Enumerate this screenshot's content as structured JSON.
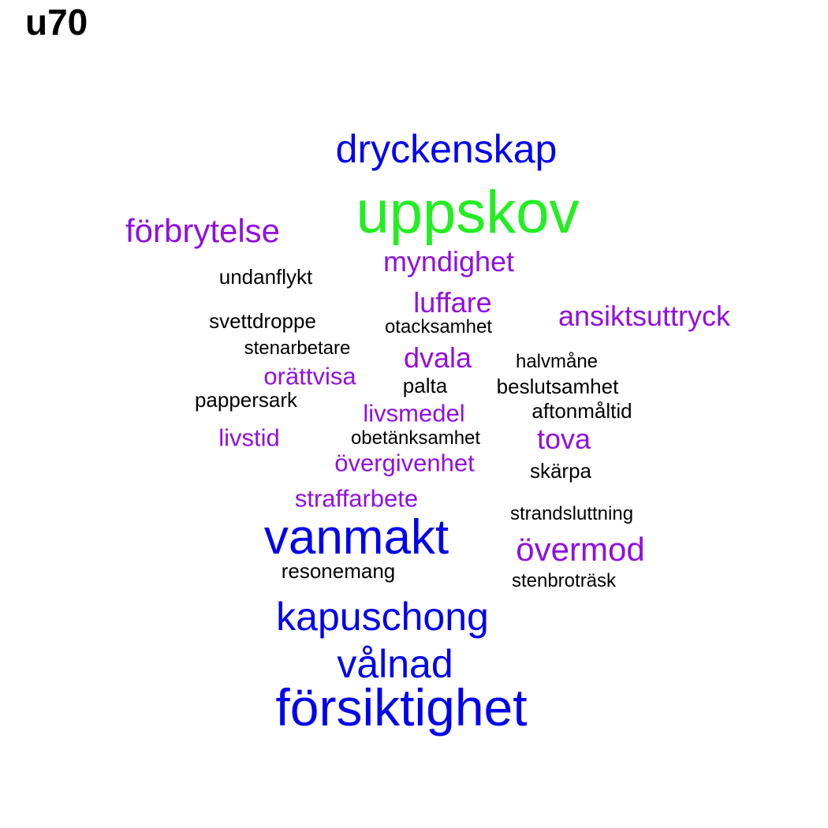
{
  "title": "u70",
  "colors": {
    "green": "#22ee22",
    "blue": "#0000ee",
    "purple": "#9010e0",
    "black": "#000000"
  },
  "words": [
    {
      "id": "uppskov",
      "text": "uppskov",
      "color": "green"
    },
    {
      "id": "forsiktighet",
      "text": "försiktighet",
      "color": "blue"
    },
    {
      "id": "vanmakt",
      "text": "vanmakt",
      "color": "blue"
    },
    {
      "id": "dryckenskap",
      "text": "dryckenskap",
      "color": "blue"
    },
    {
      "id": "kapuschong",
      "text": "kapuschong",
      "color": "blue"
    },
    {
      "id": "valnad",
      "text": "vålnad",
      "color": "blue"
    },
    {
      "id": "forbrytelse",
      "text": "förbrytelse",
      "color": "purple"
    },
    {
      "id": "overmod",
      "text": "övermod",
      "color": "purple"
    },
    {
      "id": "myndighet",
      "text": "myndighet",
      "color": "purple"
    },
    {
      "id": "luffare",
      "text": "luffare",
      "color": "purple"
    },
    {
      "id": "ansiktsuttryck",
      "text": "ansiktsuttryck",
      "color": "purple"
    },
    {
      "id": "dvala",
      "text": "dvala",
      "color": "purple"
    },
    {
      "id": "orattvisa",
      "text": "orättvisa",
      "color": "purple"
    },
    {
      "id": "livsmedel",
      "text": "livsmedel",
      "color": "purple"
    },
    {
      "id": "livstid",
      "text": "livstid",
      "color": "purple"
    },
    {
      "id": "tova",
      "text": "tova",
      "color": "purple"
    },
    {
      "id": "overgivenhet",
      "text": "övergivenhet",
      "color": "purple"
    },
    {
      "id": "straffarbete",
      "text": "straffarbete",
      "color": "purple"
    },
    {
      "id": "undanflykt",
      "text": "undanflykt",
      "color": "black"
    },
    {
      "id": "svettdroppe",
      "text": "svettdroppe",
      "color": "black"
    },
    {
      "id": "otacksamhet",
      "text": "otacksamhet",
      "color": "black"
    },
    {
      "id": "stenarbetare",
      "text": "stenarbetare",
      "color": "black"
    },
    {
      "id": "halvmane",
      "text": "halvmåne",
      "color": "black"
    },
    {
      "id": "palta",
      "text": "palta",
      "color": "black"
    },
    {
      "id": "beslutsamhet",
      "text": "beslutsamhet",
      "color": "black"
    },
    {
      "id": "pappersark",
      "text": "pappersark",
      "color": "black"
    },
    {
      "id": "aftonmaltid",
      "text": "aftonmåltid",
      "color": "black"
    },
    {
      "id": "obetanksamhet",
      "text": "obetänksamhet",
      "color": "black"
    },
    {
      "id": "skarpa",
      "text": "skärpa",
      "color": "black"
    },
    {
      "id": "strandsluttning",
      "text": "strandsluttning",
      "color": "black"
    },
    {
      "id": "resonemang",
      "text": "resonemang",
      "color": "black"
    },
    {
      "id": "stenbrotrask",
      "text": "stenbroträsk",
      "color": "black"
    }
  ]
}
